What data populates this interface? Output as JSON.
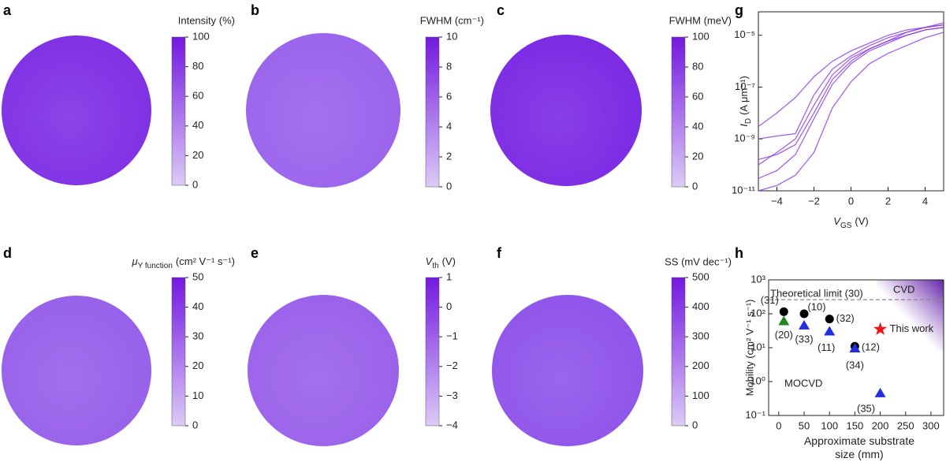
{
  "chart_data": [
    {
      "type": "wafer",
      "panel": "a",
      "label": "Intensity (%)",
      "map_color": "#7f30e4",
      "colors": [
        "#dccbf6",
        "#7418e0"
      ],
      "lim": [
        0,
        100
      ],
      "ticks": [
        0,
        20,
        40,
        60,
        80,
        100
      ]
    },
    {
      "type": "wafer",
      "panel": "b",
      "label": "FWHM (cm⁻¹)",
      "map_color": "#9a63ec",
      "colors": [
        "#dccbf6",
        "#7418e0"
      ],
      "lim": [
        0,
        10
      ],
      "ticks": [
        0,
        2,
        4,
        6,
        8,
        10
      ]
    },
    {
      "type": "wafer",
      "panel": "c",
      "label": "FWHM (meV)",
      "map_color": "#7b2ae3",
      "colors": [
        "#dccbf6",
        "#7418e0"
      ],
      "lim": [
        0,
        100
      ],
      "ticks": [
        0,
        20,
        40,
        60,
        80,
        100
      ]
    },
    {
      "type": "line",
      "panel": "g",
      "log_y": true,
      "xlabel": {
        "main": "V",
        "sub": "GS",
        "unit": "(V)"
      },
      "ylabel": {
        "main": "I",
        "sub": "D",
        "unit": "(A μm⁻¹)"
      },
      "xlim": [
        -5,
        5
      ],
      "xticks": [
        {
          "value": -4,
          "label": "−4"
        },
        {
          "value": -2,
          "label": "−2"
        },
        0,
        2,
        4
      ],
      "ylim": [
        1e-11,
        8e-05
      ],
      "yticks": [
        {
          "value": 1e-11,
          "label": "10⁻¹¹"
        },
        {
          "value": 1e-09,
          "label": "10⁻⁹"
        },
        {
          "value": 1e-07,
          "label": "10⁻⁷"
        },
        {
          "value": 1e-05,
          "label": "10⁻⁵"
        }
      ],
      "series": [
        {
          "color": "#8a3be6",
          "x": [
            -5,
            -4,
            -3,
            -2,
            -1,
            0,
            1,
            2,
            3,
            4,
            5
          ],
          "values": [
            1e-09,
            1.3e-09,
            1.6e-09,
            5e-08,
            5e-07,
            1.6e-06,
            4e-06,
            8e-06,
            1.3e-05,
            2e-05,
            2.5e-05
          ]
        },
        {
          "color": "#8a3be6",
          "x": [
            -5,
            -4,
            -3,
            -2,
            -1,
            0,
            1,
            2,
            3,
            4,
            5
          ],
          "values": [
            3e-11,
            6e-11,
            2.5e-10,
            6e-09,
            1.3e-07,
            8e-07,
            2.5e-06,
            5e-06,
            1e-05,
            1.6e-05,
            2e-05
          ]
        },
        {
          "color": "#8a3be6",
          "x": [
            -5,
            -4,
            -3,
            -2,
            -1,
            0,
            1,
            2,
            3,
            4,
            5
          ],
          "values": [
            3e-09,
            1e-08,
            4e-08,
            2.5e-07,
            1e-06,
            2.5e-06,
            5e-06,
            1e-05,
            1.6e-05,
            2e-05,
            3e-05
          ]
        },
        {
          "color": "#8a3be6",
          "x": [
            -5,
            -4,
            -3,
            -2,
            -1,
            0,
            1,
            2,
            3,
            4,
            5
          ],
          "values": [
            1e-11,
            1.6e-11,
            4e-11,
            3e-10,
            1.6e-08,
            1.6e-07,
            8e-07,
            2e-06,
            4e-06,
            8e-06,
            1.3e-05
          ]
        },
        {
          "color": "#8a3be6",
          "x": [
            -5,
            -4,
            -3,
            -2,
            -1,
            0,
            1,
            2,
            3,
            4,
            5
          ],
          "values": [
            1.6e-10,
            2.5e-10,
            6e-10,
            1e-08,
            2e-07,
            1e-06,
            3e-06,
            6e-06,
            1e-05,
            1.6e-05,
            2e-05
          ]
        },
        {
          "color": "#8a3be6",
          "x": [
            -5,
            -4,
            -3,
            -2,
            -1,
            0,
            1,
            2,
            3,
            4,
            5
          ],
          "values": [
            1e-10,
            3e-10,
            1e-09,
            2e-08,
            3e-07,
            1.3e-06,
            3e-06,
            6e-06,
            1.3e-05,
            2e-05,
            2.5e-05
          ]
        }
      ]
    },
    {
      "type": "wafer",
      "panel": "d",
      "label": {
        "main": "μ",
        "sub": "Y function",
        "unit": "(cm² V⁻¹ s⁻¹)"
      },
      "map_color": "#9760ea",
      "colors": [
        "#dccbf6",
        "#7418e0"
      ],
      "lim": [
        0,
        50
      ],
      "ticks": [
        0,
        10,
        20,
        30,
        40,
        50
      ]
    },
    {
      "type": "wafer",
      "panel": "e",
      "label": {
        "main": "V",
        "sub": "th",
        "unit": "(V)"
      },
      "map_color": "#9a61ea",
      "colors": [
        "#dccbf6",
        "#7418e0"
      ],
      "lim": [
        -4,
        1
      ],
      "ticks": [
        {
          "value": -4,
          "label": "−4"
        },
        {
          "value": -3,
          "label": "−3"
        },
        {
          "value": -2,
          "label": "−2"
        },
        {
          "value": -1,
          "label": "−1"
        },
        0,
        1
      ]
    },
    {
      "type": "wafer",
      "panel": "f",
      "label": "SS (mV dec⁻¹)",
      "map_color": "#8f54ea",
      "colors": [
        "#dccbf6",
        "#7418e0"
      ],
      "lim": [
        0,
        500
      ],
      "ticks": [
        0,
        100,
        200,
        300,
        400,
        500
      ]
    },
    {
      "type": "scatter",
      "panel": "h",
      "log_y": true,
      "xlabel": "Approximate substrate size (mm)",
      "ylabel": "Mobility (cm² V⁻¹ s⁻¹)",
      "xlim": [
        -20,
        325
      ],
      "xticks": [
        0,
        50,
        100,
        150,
        200,
        250,
        300
      ],
      "ylim": [
        0.1,
        1000
      ],
      "yticks": [
        {
          "value": 0.1,
          "label": "10⁻¹"
        },
        {
          "value": 1,
          "label": "10⁰"
        },
        {
          "value": 10,
          "label": "10¹"
        },
        {
          "value": 100,
          "label": "10²"
        },
        {
          "value": 1000,
          "label": "10³"
        }
      ],
      "reference_line": {
        "value": 260,
        "label": "Theoretical limit (30)"
      },
      "series": [
        {
          "name": "CVD",
          "marker": "circle",
          "color": "#000000",
          "x": [
            10,
            50,
            100,
            150
          ],
          "values": [
            115,
            100,
            70,
            11
          ],
          "labels": [
            "(31)",
            "(10)",
            "(32)",
            "(12)"
          ]
        },
        {
          "name": "MOCVD",
          "marker": "triangle",
          "color": "#1f2fe0",
          "x": [
            50,
            100,
            150,
            200
          ],
          "values": [
            45,
            30,
            9.5,
            0.45
          ],
          "labels": [
            "(33)",
            "(11)",
            "(34)",
            "(35)"
          ]
        },
        {
          "marker": "triangle",
          "color": "#1e8a1e",
          "x": [
            10
          ],
          "values": [
            60
          ],
          "labels": [
            "(20)"
          ]
        },
        {
          "name": "This work",
          "marker": "star",
          "color": "#ee1515",
          "x": [
            200
          ],
          "values": [
            35
          ]
        }
      ]
    }
  ]
}
